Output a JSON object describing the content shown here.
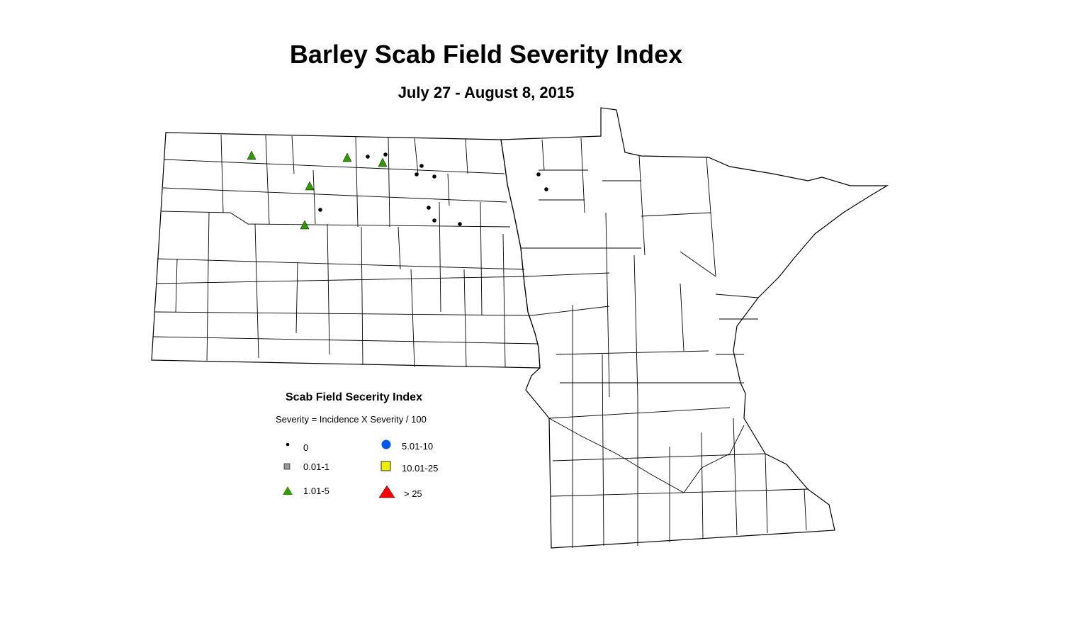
{
  "title": "Barley Scab Field Severity Index",
  "subtitle": "July 27 - August 8, 2015",
  "legend": {
    "title": "Scab Field Secerity Index",
    "formula": "Severity = Incidence X Severity / 100",
    "items": [
      {
        "label": "0",
        "symbol": "dot",
        "color": "#000000"
      },
      {
        "label": "0.01-1",
        "symbol": "square",
        "color": "#999999"
      },
      {
        "label": "1.01-5",
        "symbol": "triangle",
        "color": "#339900"
      },
      {
        "label": "5.01-10",
        "symbol": "circle",
        "color": "#0055ee"
      },
      {
        "label": "10.01-25",
        "symbol": "square",
        "color": "#eeee00"
      },
      {
        "label": "> 25",
        "symbol": "triangle",
        "color": "#ff0000"
      }
    ]
  },
  "observations": {
    "category_1_01_5_count": 5,
    "category_0_count": 11
  }
}
